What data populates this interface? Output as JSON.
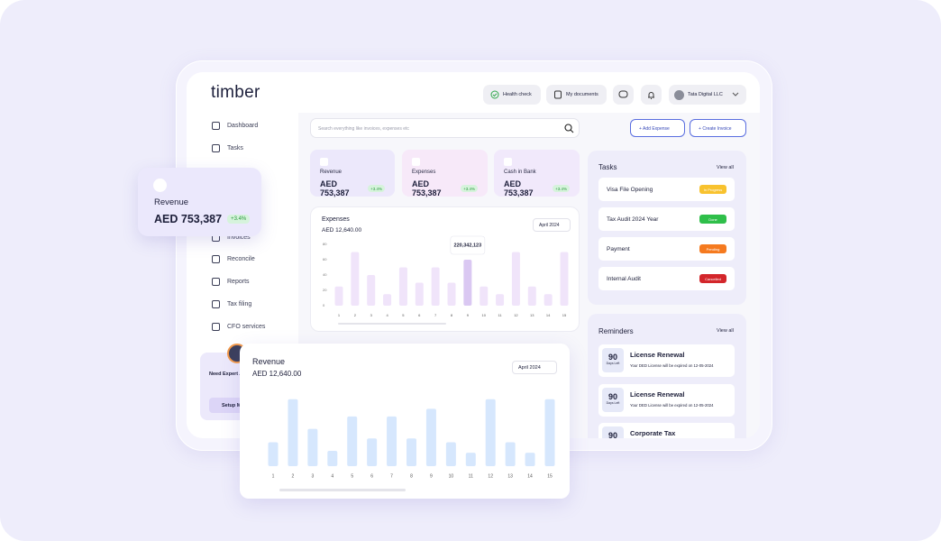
{
  "sidebar": {
    "logo": "timber",
    "nav": [
      "Dashboard",
      "Tasks",
      "Invoices",
      "Reconcile",
      "Reports",
      "Tax filing",
      "CFO services"
    ],
    "expert": {
      "title": "Need Expert Ac",
      "button": "Setup M"
    }
  },
  "header": {
    "health": "Health check",
    "docs": "My documents",
    "company": "Tata Digital LLC",
    "search": "Search everything like invoices, expenses etc",
    "add_expense": "Add Expense",
    "create_invoice": "Create Invoice"
  },
  "stats": [
    {
      "label": "Revenue",
      "value": "AED 753,387",
      "change": "+3.4%"
    },
    {
      "label": "Expenses",
      "value": "AED 753,387",
      "change": "+3.4%"
    },
    {
      "label": "Cash in Bank",
      "value": "AED 753,387",
      "change": "+3.4%"
    }
  ],
  "floating_stat": {
    "label": "Revenue",
    "value": "AED 753,387",
    "change": "+3.4%"
  },
  "tasks": {
    "title": "Tasks",
    "view_all": "View all",
    "items": [
      {
        "name": "Visa File Opening",
        "status": "In Progress"
      },
      {
        "name": "Tax Audit 2024 Year",
        "status": "Done"
      },
      {
        "name": "Payment",
        "status": "Pending"
      },
      {
        "name": "Internal Audit",
        "status": "Cancelled"
      }
    ]
  },
  "reminders": {
    "title": "Reminders",
    "view_all": "View all",
    "items": [
      {
        "days": "90",
        "days_label": "Days Left",
        "title": "License Renewal",
        "text": "Your DED License will be expired on 12-05-2024"
      },
      {
        "days": "90",
        "days_label": "Days Left",
        "title": "License Renewal",
        "text": "Your DED License will be expired on 12-05-2024"
      },
      {
        "days": "90",
        "title": "Corporate Tax"
      }
    ]
  },
  "chart_data": [
    {
      "type": "bar",
      "title": "Expenses",
      "subtitle": "AED 12,640.00",
      "period": "April 2024",
      "annotation": "220,342,123",
      "highlight_category": "9",
      "categories": [
        "1",
        "2",
        "3",
        "4",
        "5",
        "6",
        "7",
        "8",
        "9",
        "10",
        "11",
        "12",
        "13",
        "14",
        "15"
      ],
      "values": [
        25,
        70,
        40,
        15,
        50,
        30,
        50,
        30,
        60,
        25,
        15,
        70,
        25,
        15,
        70
      ],
      "color": "#f0e4fa",
      "highlight_color": "#dac8f2",
      "ylim": [
        0,
        100
      ],
      "yticks": [
        0,
        20,
        40,
        60,
        80
      ]
    },
    {
      "type": "bar",
      "title": "Revenue",
      "subtitle": "AED 12,640.00",
      "period": "April 2024",
      "categories": [
        "1",
        "2",
        "3",
        "4",
        "5",
        "6",
        "7",
        "8",
        "9",
        "10",
        "11",
        "12",
        "13",
        "14",
        "15"
      ],
      "values": [
        25,
        70,
        39,
        16,
        52,
        29,
        52,
        29,
        60,
        25,
        14,
        70,
        25,
        14,
        70
      ],
      "color": "#d6e7fd",
      "ylim": [
        0,
        100
      ]
    }
  ]
}
